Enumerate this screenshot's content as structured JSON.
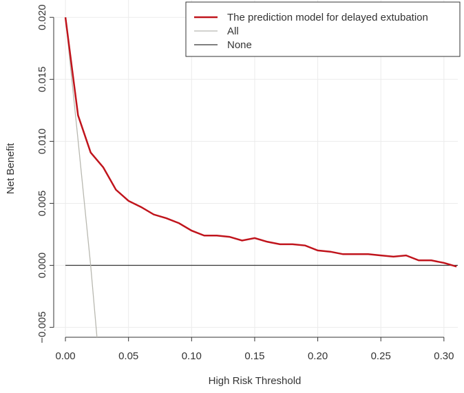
{
  "chart_data": {
    "type": "line",
    "title": "",
    "xlabel": "High Risk Threshold",
    "ylabel": "Net Benefit",
    "xlim": [
      -0.0093,
      0.311
    ],
    "ylim": [
      -0.0058,
      0.0214
    ],
    "xticks": [
      0,
      0.05,
      0.1,
      0.15,
      0.2,
      0.25,
      0.3
    ],
    "xtick_labels": [
      "0.00",
      "0.05",
      "0.10",
      "0.15",
      "0.20",
      "0.25",
      "0.30"
    ],
    "yticks": [
      -0.005,
      0,
      0.005,
      0.01,
      0.015,
      0.02
    ],
    "ytick_labels": [
      "−0.005",
      "0.000",
      "0.005",
      "0.010",
      "0.015",
      "0.020"
    ],
    "grid": true,
    "legend_position": "top-right",
    "series": [
      {
        "name": "The prediction model for delayed extubation",
        "color": "#c0141c",
        "x": [
          0,
          0.01,
          0.02,
          0.03,
          0.04,
          0.05,
          0.06,
          0.07,
          0.08,
          0.09,
          0.1,
          0.11,
          0.12,
          0.13,
          0.14,
          0.15,
          0.16,
          0.17,
          0.18,
          0.19,
          0.2,
          0.21,
          0.22,
          0.23,
          0.24,
          0.25,
          0.26,
          0.27,
          0.28,
          0.29,
          0.3,
          0.31
        ],
        "y": [
          0.02,
          0.0121,
          0.0091,
          0.0079,
          0.0061,
          0.0052,
          0.0047,
          0.0041,
          0.0038,
          0.0034,
          0.0028,
          0.0024,
          0.0024,
          0.0023,
          0.002,
          0.0022,
          0.0019,
          0.0017,
          0.0017,
          0.0016,
          0.0012,
          0.0011,
          0.0009,
          0.0009,
          0.0009,
          0.0008,
          0.0007,
          0.0008,
          0.0004,
          0.0004,
          0.0002,
          -0.0001
        ]
      },
      {
        "name": "All",
        "color": "#b8b8b0",
        "x": [
          0,
          0.01,
          0.02,
          0.025
        ],
        "y": [
          0.02,
          0.0101,
          0.0,
          -0.0058
        ]
      },
      {
        "name": "None",
        "color": "#333333",
        "x": [
          0,
          0.311
        ],
        "y": [
          0,
          0
        ]
      }
    ]
  }
}
